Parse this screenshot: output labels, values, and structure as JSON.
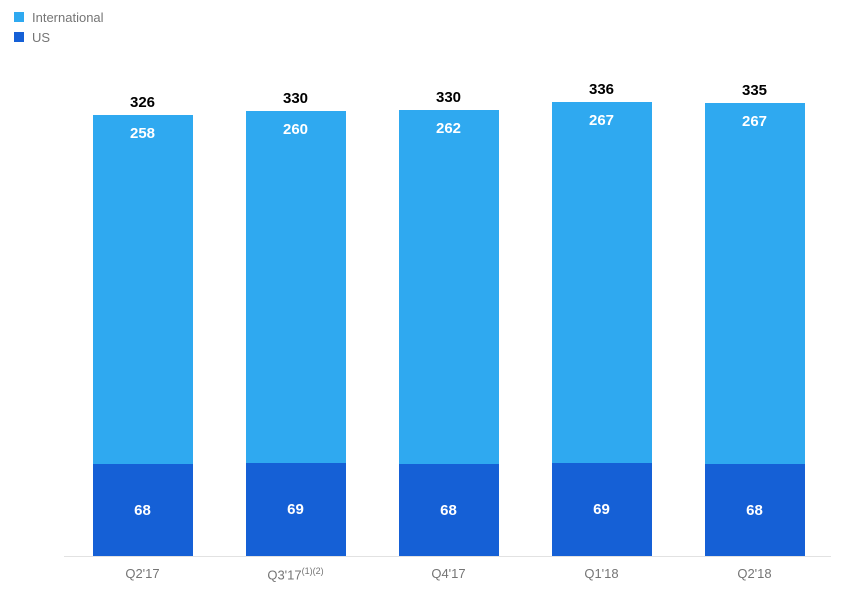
{
  "legend": {
    "items": [
      {
        "label": "International",
        "color": "#2fa9f0"
      },
      {
        "label": "US",
        "color": "#1560d6"
      }
    ]
  },
  "chart_data": {
    "type": "bar",
    "stacked": true,
    "title": "",
    "xlabel": "",
    "ylabel": "",
    "grid": false,
    "legend_position": "top-left",
    "categories": [
      "Q2'17",
      "Q3'17",
      "Q4'17",
      "Q1'18",
      "Q2'18"
    ],
    "category_superscripts": [
      "",
      "(1)(2)",
      "",
      "",
      ""
    ],
    "series": [
      {
        "name": "US",
        "color": "#1560d6",
        "values": [
          68,
          69,
          68,
          69,
          68
        ]
      },
      {
        "name": "International",
        "color": "#2fa9f0",
        "values": [
          258,
          260,
          262,
          267,
          267
        ]
      }
    ],
    "totals": [
      326,
      330,
      330,
      336,
      335
    ],
    "ylim": [
      0,
      350
    ],
    "colors": {
      "total_label": "#000000",
      "segment_label": "#ffffff",
      "axis_line": "#e2e2e2",
      "category_label": "#757575"
    }
  }
}
